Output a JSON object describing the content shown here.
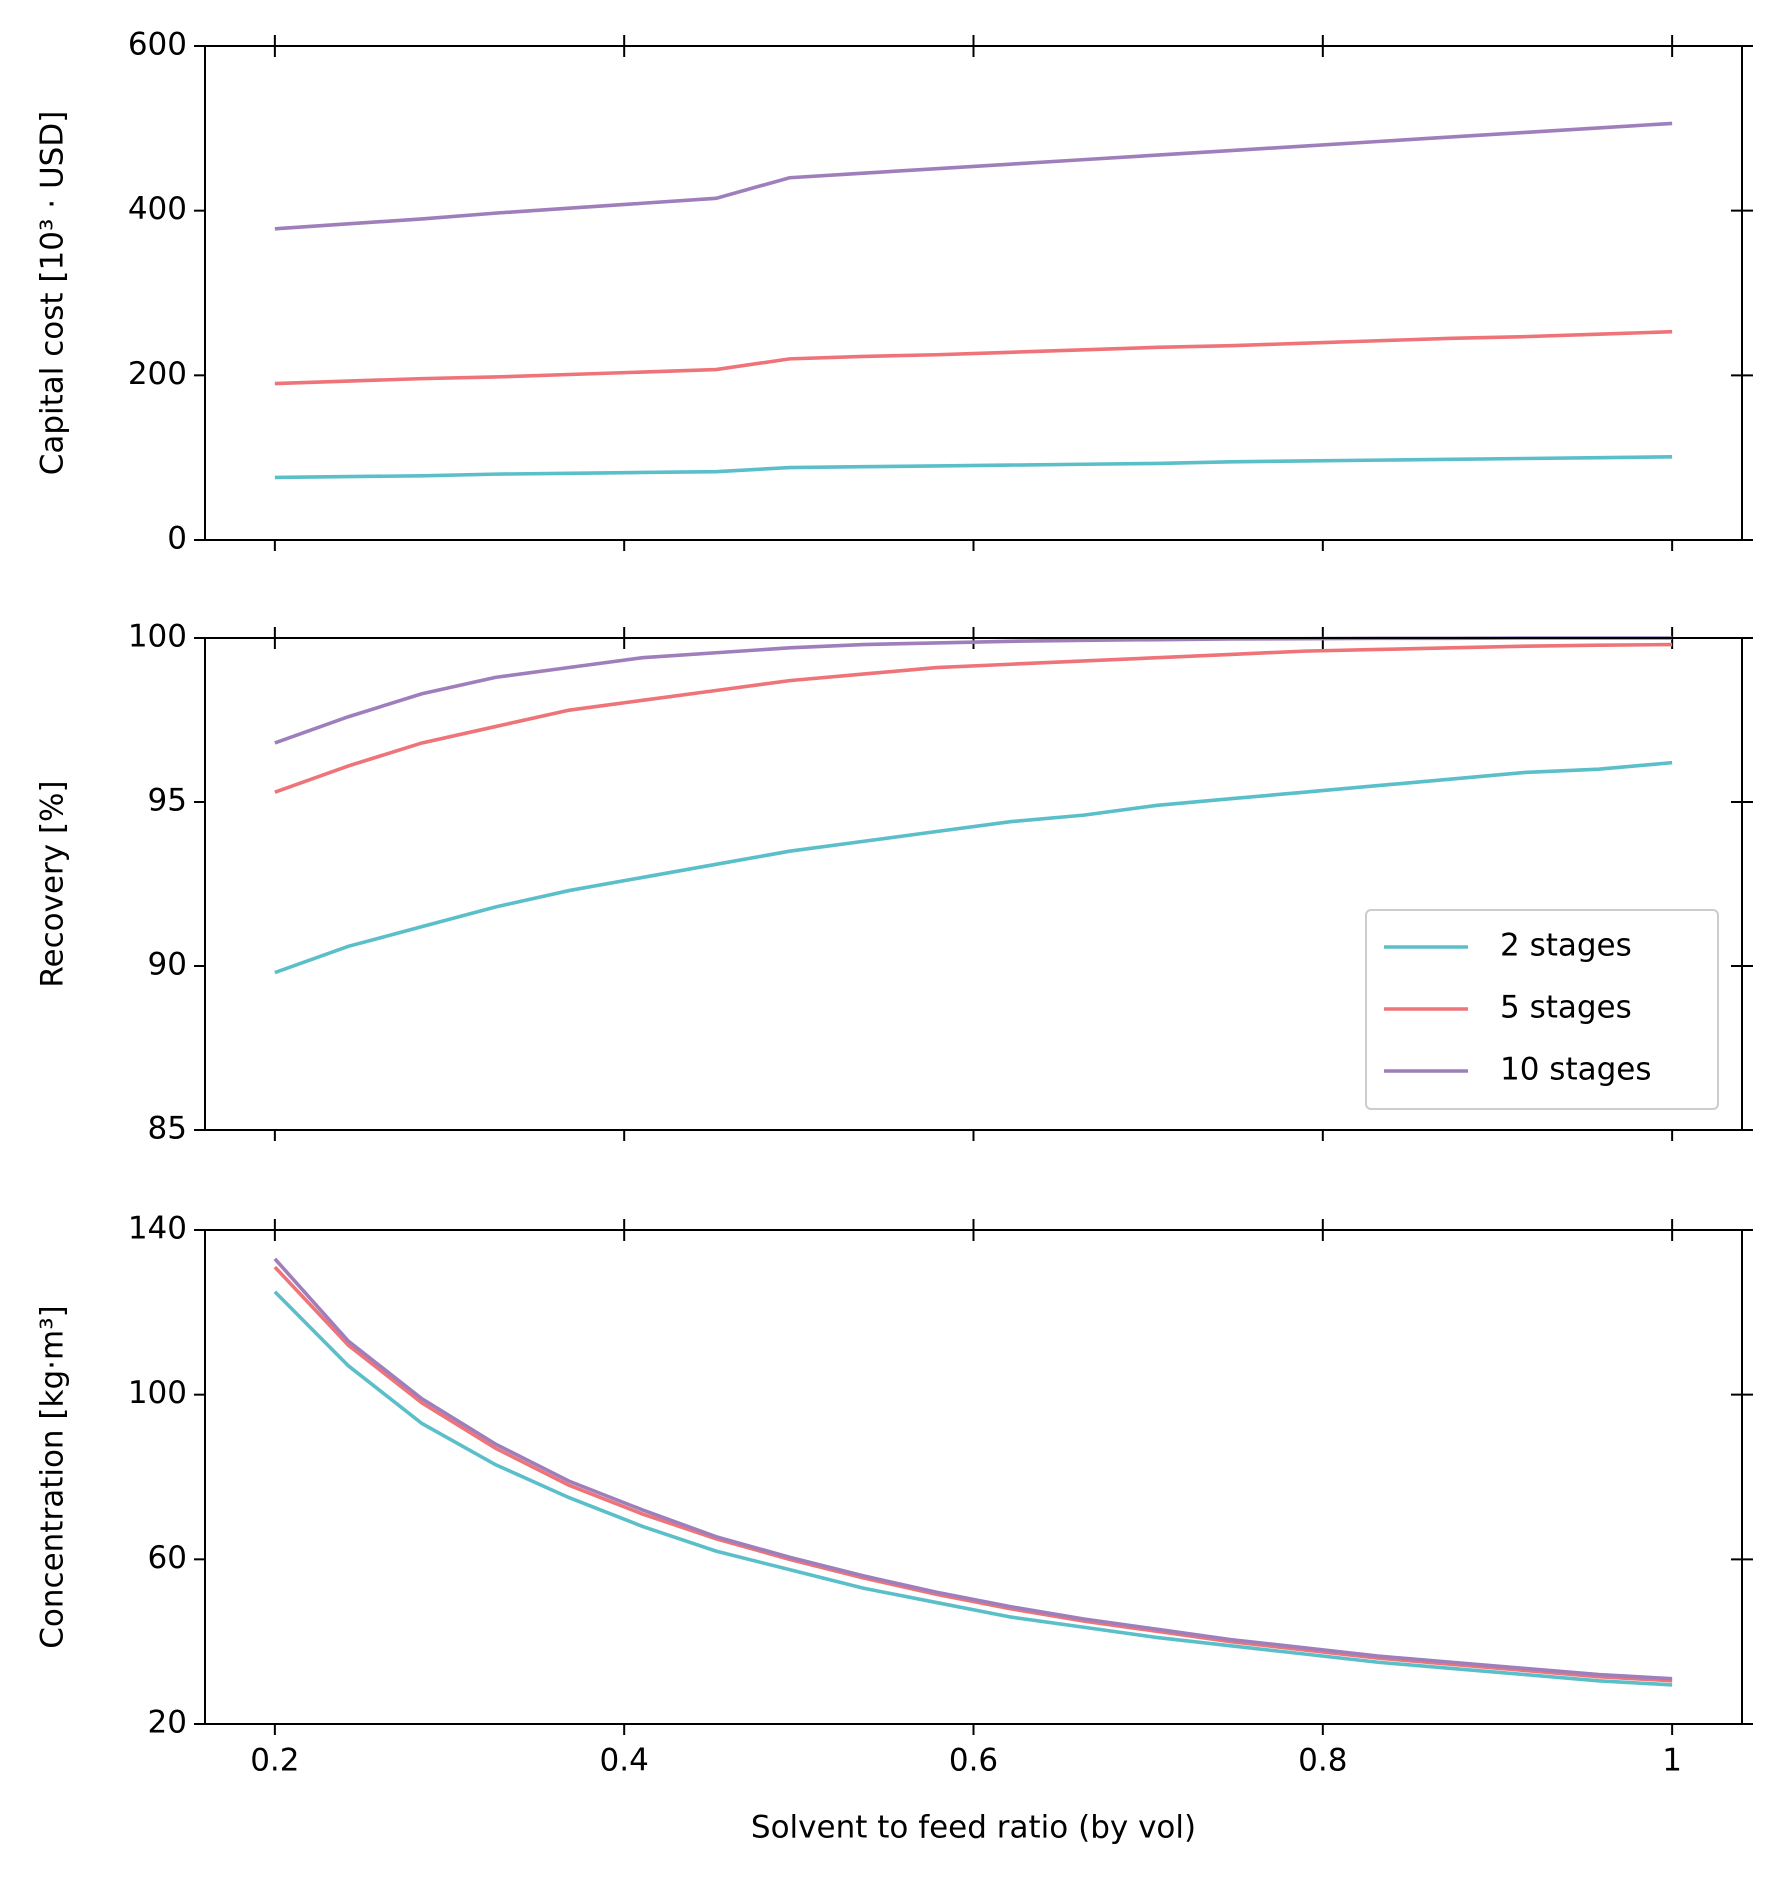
{
  "chart_data": [
    {
      "type": "line",
      "ylabel": "Capital cost [10³ · USD]",
      "x": [
        0.2,
        0.2421,
        0.2842,
        0.3263,
        0.3684,
        0.4105,
        0.4526,
        0.4947,
        0.5368,
        0.5789,
        0.6211,
        0.6632,
        0.7053,
        0.7474,
        0.7895,
        0.8316,
        0.8737,
        0.9158,
        0.9579,
        1.0
      ],
      "series": [
        {
          "name": "2 stages",
          "color": "#5bbfca",
          "values": [
            76,
            77,
            78,
            80,
            81,
            82,
            83,
            88,
            89,
            90,
            91,
            92,
            93,
            95,
            96,
            97,
            98,
            99,
            100,
            101
          ]
        },
        {
          "name": "5 stages",
          "color": "#ee7479",
          "values": [
            190,
            193,
            196,
            198,
            201,
            204,
            207,
            220,
            223,
            225,
            228,
            231,
            234,
            236,
            239,
            242,
            245,
            247,
            250,
            253
          ]
        },
        {
          "name": "10 stages",
          "color": "#9e7fbc",
          "values": [
            378,
            384,
            390,
            397,
            403,
            409,
            415,
            440,
            445.5,
            451,
            456.5,
            462,
            467.5,
            473,
            478.5,
            484,
            489.5,
            495,
            500.5,
            506
          ]
        }
      ],
      "xlim": [
        0.16,
        1.04
      ],
      "ylim": [
        0,
        600
      ],
      "yticks": [
        0,
        200,
        400,
        600
      ]
    },
    {
      "type": "line",
      "ylabel": "Recovery [%]",
      "legend": "lower right",
      "x": [
        0.2,
        0.2421,
        0.2842,
        0.3263,
        0.3684,
        0.4105,
        0.4526,
        0.4947,
        0.5368,
        0.5789,
        0.6211,
        0.6632,
        0.7053,
        0.7474,
        0.7895,
        0.8316,
        0.8737,
        0.9158,
        0.9579,
        1.0
      ],
      "series": [
        {
          "name": "2 stages",
          "color": "#5bbfca",
          "values": [
            89.8,
            90.6,
            91.2,
            91.8,
            92.3,
            92.7,
            93.1,
            93.5,
            93.8,
            94.1,
            94.4,
            94.6,
            94.9,
            95.1,
            95.3,
            95.5,
            95.7,
            95.9,
            96.0,
            96.2
          ]
        },
        {
          "name": "5 stages",
          "color": "#ee7479",
          "values": [
            95.3,
            96.1,
            96.8,
            97.3,
            97.8,
            98.1,
            98.4,
            98.7,
            98.9,
            99.1,
            99.2,
            99.3,
            99.4,
            99.5,
            99.6,
            99.65,
            99.7,
            99.75,
            99.78,
            99.8
          ]
        },
        {
          "name": "10 stages",
          "color": "#9e7fbc",
          "values": [
            96.8,
            97.6,
            98.3,
            98.8,
            99.1,
            99.4,
            99.55,
            99.7,
            99.8,
            99.85,
            99.9,
            99.93,
            99.95,
            99.97,
            99.98,
            99.99,
            99.99,
            100,
            100,
            100
          ]
        }
      ],
      "xlim": [
        0.16,
        1.04
      ],
      "ylim": [
        85,
        100
      ],
      "yticks": [
        85,
        90,
        95,
        100
      ]
    },
    {
      "type": "line",
      "ylabel": "Concentration [kg·m³]",
      "xlabel": "Solvent to feed ratio (by vol)",
      "x": [
        0.2,
        0.2421,
        0.2842,
        0.3263,
        0.3684,
        0.4105,
        0.4526,
        0.4947,
        0.5368,
        0.5789,
        0.6211,
        0.6632,
        0.7053,
        0.7474,
        0.7895,
        0.8316,
        0.8737,
        0.9158,
        0.9579,
        1.0
      ],
      "series": [
        {
          "name": "2 stages",
          "color": "#5bbfca",
          "values": [
            125,
            107,
            93,
            83,
            75,
            68,
            62,
            57.5,
            53,
            49.5,
            46,
            43.5,
            41,
            39,
            37,
            35,
            33.5,
            32,
            30.5,
            29.5
          ]
        },
        {
          "name": "5 stages",
          "color": "#ee7479",
          "values": [
            131,
            112,
            98,
            87,
            78,
            71,
            65,
            60,
            55.5,
            51.5,
            48,
            45,
            42.5,
            40,
            38,
            36,
            34.5,
            33,
            31.5,
            30.5
          ]
        },
        {
          "name": "10 stages",
          "color": "#9e7fbc",
          "values": [
            133,
            113,
            99,
            88,
            79,
            72,
            65.5,
            60.5,
            56,
            52,
            48.5,
            45.5,
            43,
            40.5,
            38.5,
            36.5,
            35,
            33.5,
            32,
            31
          ]
        }
      ],
      "xlim": [
        0.16,
        1.04
      ],
      "ylim": [
        20,
        140
      ],
      "yticks": [
        20,
        60,
        100,
        140
      ],
      "xticks": [
        0.2,
        0.4,
        0.6,
        0.8,
        1
      ]
    }
  ]
}
